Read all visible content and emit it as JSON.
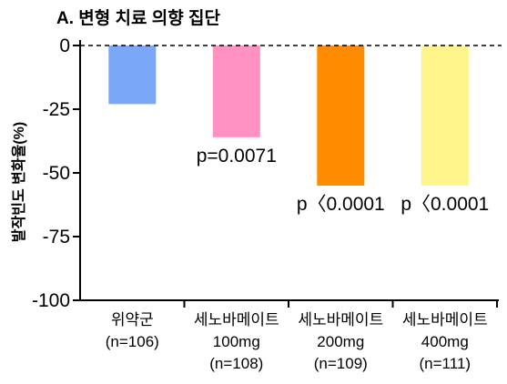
{
  "chart_data": {
    "type": "bar",
    "title": "A. 변형 치료 의향 집단",
    "xlabel": "",
    "ylabel": "발작빈도 변화율(%)",
    "ylim": [
      -100,
      0
    ],
    "yticks": [
      0,
      -25,
      -50,
      -75,
      -100
    ],
    "categories": [
      [
        "위약군",
        "(n=106)"
      ],
      [
        "세노바메이트",
        "100mg",
        "(n=108)"
      ],
      [
        "세노바메이트",
        "200mg",
        "(n=109)"
      ],
      [
        "세노바메이트",
        "400mg",
        "(n=111)"
      ]
    ],
    "values": [
      -23,
      -36,
      -55,
      -55
    ],
    "bar_colors": [
      "#7aa7f7",
      "#ff92c2",
      "#ff8c00",
      "#fff489"
    ],
    "data_labels": [
      null,
      "p=0.0071",
      "p〈0.0001",
      "p〈0.0001"
    ],
    "reference_line": 0,
    "grid": false,
    "legend": false
  }
}
